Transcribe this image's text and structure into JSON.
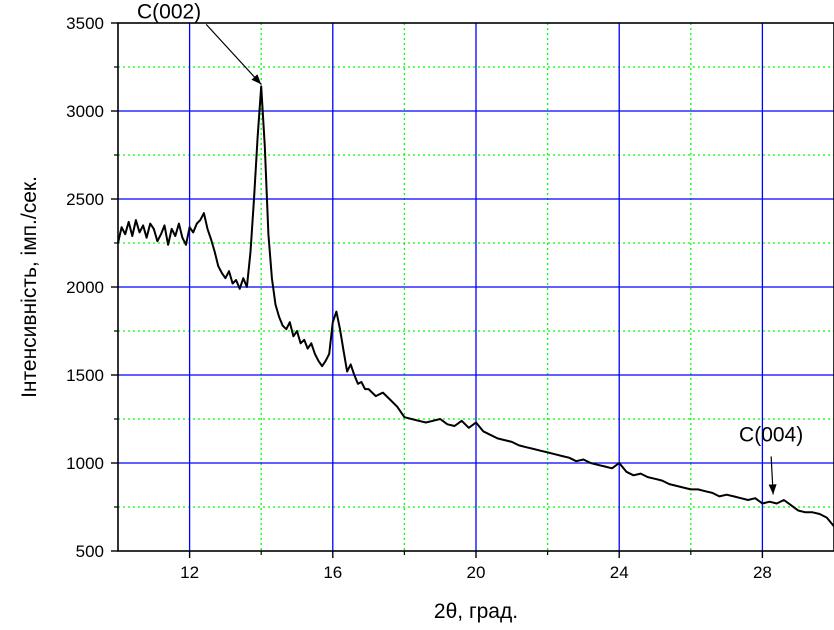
{
  "chart_data": {
    "type": "line",
    "xlabel": "2θ, град.",
    "ylabel": "Інтенсивність, імп./сек.",
    "xlim": [
      10,
      30
    ],
    "ylim": [
      500,
      3500
    ],
    "x_major_ticks": [
      12,
      16,
      20,
      24,
      28
    ],
    "x_minor_grid": [
      14,
      18,
      22,
      26
    ],
    "y_major_ticks": [
      500,
      1000,
      1500,
      2000,
      2500,
      3000,
      3500
    ],
    "y_minor_grid": [
      750,
      1250,
      1750,
      2250,
      2750,
      3250
    ],
    "grid": true,
    "major_grid_color": "#0000ff",
    "minor_grid_color": "#00ff00",
    "line_color": "#000000",
    "series": [
      {
        "x": [
          10.0,
          10.1,
          10.2,
          10.3,
          10.4,
          10.5,
          10.6,
          10.7,
          10.8,
          10.9,
          11.0,
          11.1,
          11.2,
          11.3,
          11.4,
          11.5,
          11.6,
          11.7,
          11.8,
          11.9,
          12.0,
          12.1,
          12.2,
          12.3,
          12.4,
          12.5,
          12.6,
          12.7,
          12.8,
          12.9,
          13.0,
          13.1,
          13.2,
          13.3,
          13.4,
          13.5,
          13.6,
          13.7,
          13.8,
          13.9,
          14.0,
          14.1,
          14.2,
          14.3,
          14.4,
          14.5,
          14.6,
          14.7,
          14.8,
          14.9,
          15.0,
          15.1,
          15.2,
          15.3,
          15.4,
          15.5,
          15.6,
          15.7,
          15.8,
          15.9,
          16.0,
          16.1,
          16.2,
          16.3,
          16.4,
          16.5,
          16.6,
          16.7,
          16.8,
          16.9,
          17.0,
          17.2,
          17.4,
          17.6,
          17.8,
          18.0,
          18.2,
          18.4,
          18.6,
          18.8,
          19.0,
          19.2,
          19.4,
          19.6,
          19.8,
          20.0,
          20.2,
          20.4,
          20.6,
          20.8,
          21.0,
          21.2,
          21.4,
          21.6,
          21.8,
          22.0,
          22.2,
          22.4,
          22.6,
          22.8,
          23.0,
          23.2,
          23.4,
          23.6,
          23.8,
          24.0,
          24.2,
          24.4,
          24.6,
          24.8,
          25.0,
          25.2,
          25.4,
          25.6,
          25.8,
          26.0,
          26.2,
          26.4,
          26.6,
          26.8,
          27.0,
          27.2,
          27.4,
          27.6,
          27.8,
          28.0,
          28.2,
          28.4,
          28.6,
          28.8,
          29.0,
          29.2,
          29.4,
          29.6,
          29.8,
          30.0
        ],
        "y": [
          2250,
          2340,
          2300,
          2370,
          2290,
          2380,
          2310,
          2350,
          2280,
          2360,
          2330,
          2260,
          2300,
          2350,
          2240,
          2330,
          2290,
          2360,
          2280,
          2240,
          2340,
          2310,
          2360,
          2380,
          2420,
          2330,
          2270,
          2200,
          2120,
          2080,
          2050,
          2090,
          2020,
          2040,
          1990,
          2050,
          2000,
          2200,
          2500,
          2850,
          3140,
          2800,
          2300,
          2050,
          1900,
          1830,
          1780,
          1760,
          1800,
          1720,
          1750,
          1680,
          1700,
          1650,
          1680,
          1620,
          1580,
          1550,
          1580,
          1620,
          1800,
          1860,
          1760,
          1640,
          1520,
          1560,
          1500,
          1450,
          1460,
          1420,
          1420,
          1380,
          1400,
          1360,
          1320,
          1260,
          1250,
          1240,
          1230,
          1240,
          1250,
          1220,
          1210,
          1240,
          1200,
          1230,
          1180,
          1160,
          1140,
          1130,
          1120,
          1100,
          1090,
          1080,
          1070,
          1060,
          1050,
          1040,
          1030,
          1010,
          1020,
          1000,
          990,
          980,
          970,
          1000,
          950,
          930,
          940,
          920,
          910,
          900,
          880,
          870,
          860,
          850,
          850,
          840,
          830,
          810,
          820,
          810,
          800,
          790,
          800,
          770,
          780,
          770,
          790,
          760,
          730,
          720,
          720,
          710,
          690,
          640
        ]
      }
    ],
    "annotations": [
      {
        "text": "C(002)",
        "x": 14.0,
        "y": 3140
      },
      {
        "text": "C(004)",
        "x": 28.3,
        "y": 810
      }
    ]
  }
}
